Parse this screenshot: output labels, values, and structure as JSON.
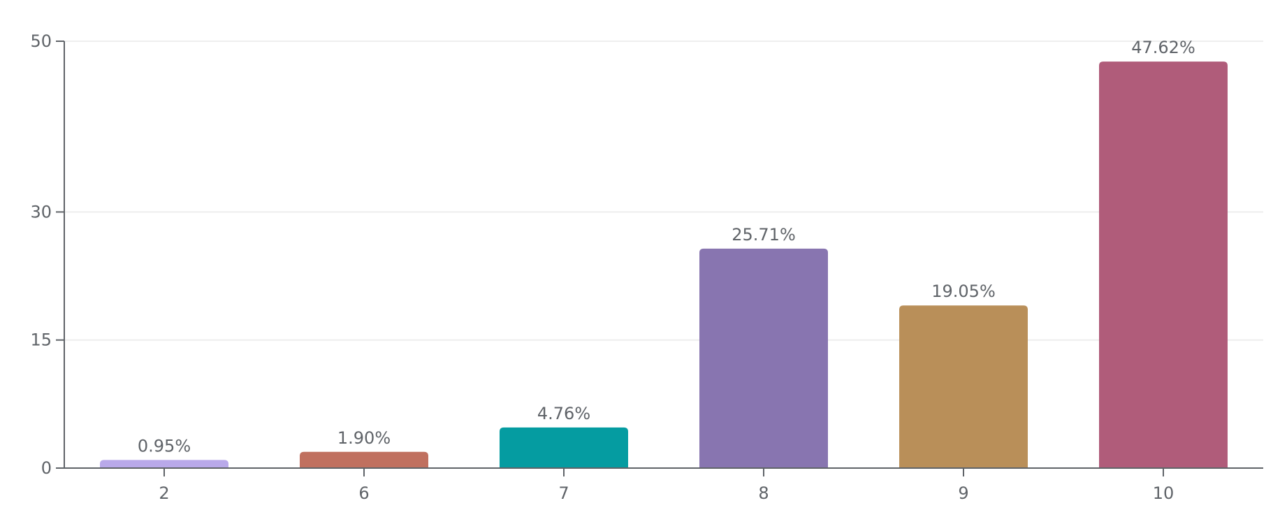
{
  "chart_data": {
    "type": "bar",
    "title": "",
    "xlabel": "",
    "ylabel": "",
    "categories": [
      "2",
      "6",
      "7",
      "8",
      "9",
      "10"
    ],
    "values": [
      0.95,
      1.9,
      4.76,
      25.71,
      19.05,
      47.62
    ],
    "value_labels": [
      "0.95%",
      "1.90%",
      "4.76%",
      "25.71%",
      "19.05%",
      "47.62%"
    ],
    "bar_colors": [
      "#b9a9ea",
      "#c0705f",
      "#059ca1",
      "#8875b0",
      "#b98f59",
      "#b05c7a"
    ],
    "yticks": [
      0,
      15,
      30,
      50
    ],
    "ytick_labels": [
      "0",
      "15",
      "30",
      "50"
    ],
    "ylim": [
      0,
      50
    ],
    "grid": true,
    "legend": "none",
    "axis_color": "#5f6368",
    "grid_color": "#eeeeee",
    "text_color": "#5f6368"
  }
}
